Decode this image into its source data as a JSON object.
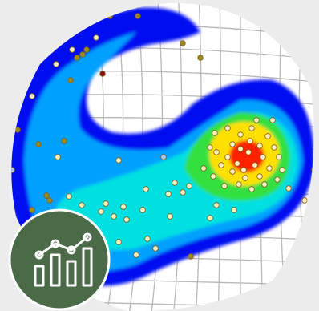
{
  "map": {
    "name": "",
    "colors": {
      "page_background": "#ececec",
      "globe_background": "#ffffff",
      "graticule": "#b8b8b8",
      "density_low": "#0010f0",
      "density_mid_low": "#00a0ff",
      "density_mid": "#00e0e0",
      "density_mid_high": "#30e040",
      "density_high": "#ffe000",
      "density_peak": "#ff2000"
    },
    "point_colors": {
      "light": "#fff0c0",
      "olive": "#9a8a20",
      "dark_red": "#8a1010",
      "pale_blue": "#a8c8ff"
    }
  },
  "badge": {
    "icon": "bar-chart-with-trend-line-icon",
    "color": "#4a6a48",
    "border": "#ffffff"
  }
}
